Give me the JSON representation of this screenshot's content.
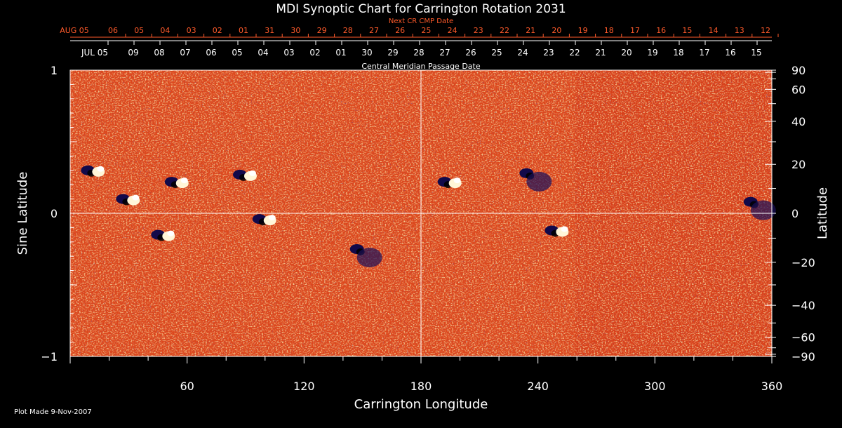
{
  "chart_data": {
    "type": "heatmap",
    "title": "MDI Synoptic Chart for Carrington Rotation 2031",
    "xlabel": "Carrington Longitude",
    "ylabel_left": "Sine Latitude",
    "ylabel_right": "Latitude",
    "top_red_label": "Next CR CMP Date",
    "top_white_label": "Central Meridian Passage Date",
    "footer": "Plot Made  9-Nov-2007",
    "xlim": [
      0,
      360
    ],
    "ylim_left": [
      -1,
      1
    ],
    "x_ticks": [
      "60",
      "120",
      "180",
      "240",
      "300",
      "360"
    ],
    "y_ticks_left": [
      "1",
      "0",
      "−1"
    ],
    "y_ticks_right": [
      "90",
      "60",
      "40",
      "20",
      "0",
      "−20",
      "−40",
      "−60",
      "−90"
    ],
    "cmp_dates_white": [
      "JUL 05",
      "09",
      "08",
      "07",
      "06",
      "05",
      "04",
      "03",
      "02",
      "01",
      "30",
      "29",
      "28",
      "27",
      "26",
      "25",
      "24",
      "23",
      "22",
      "21",
      "20",
      "19",
      "18",
      "17",
      "16",
      "15"
    ],
    "cmp_dates_red": [
      "AUG 05",
      "06",
      "05",
      "04",
      "03",
      "02",
      "01",
      "31",
      "30",
      "29",
      "28",
      "27",
      "26",
      "25",
      "24",
      "23",
      "22",
      "21",
      "20",
      "19",
      "18",
      "17",
      "16",
      "15",
      "14",
      "13",
      "12"
    ],
    "colors": {
      "background": "#000000",
      "field_base": "#d8401a",
      "positive_polarity": "#ffffff",
      "negative_polarity": "#1a0f5a",
      "axis": "#ffffff",
      "red_labels": "#ff5a2a"
    },
    "active_regions": [
      {
        "lon": 12,
        "sinlat": 0.3,
        "polarity": "mixed"
      },
      {
        "lon": 55,
        "sinlat": 0.22,
        "polarity": "mixed"
      },
      {
        "lon": 30,
        "sinlat": 0.1,
        "polarity": "mixed"
      },
      {
        "lon": 48,
        "sinlat": -0.15,
        "polarity": "mixed"
      },
      {
        "lon": 90,
        "sinlat": 0.27,
        "polarity": "mixed"
      },
      {
        "lon": 100,
        "sinlat": -0.04,
        "polarity": "mixed"
      },
      {
        "lon": 150,
        "sinlat": -0.25,
        "polarity": "negative"
      },
      {
        "lon": 195,
        "sinlat": 0.22,
        "polarity": "mixed"
      },
      {
        "lon": 250,
        "sinlat": -0.12,
        "polarity": "mixed"
      },
      {
        "lon": 237,
        "sinlat": 0.28,
        "polarity": "negative"
      },
      {
        "lon": 352,
        "sinlat": 0.08,
        "polarity": "negative"
      }
    ]
  }
}
